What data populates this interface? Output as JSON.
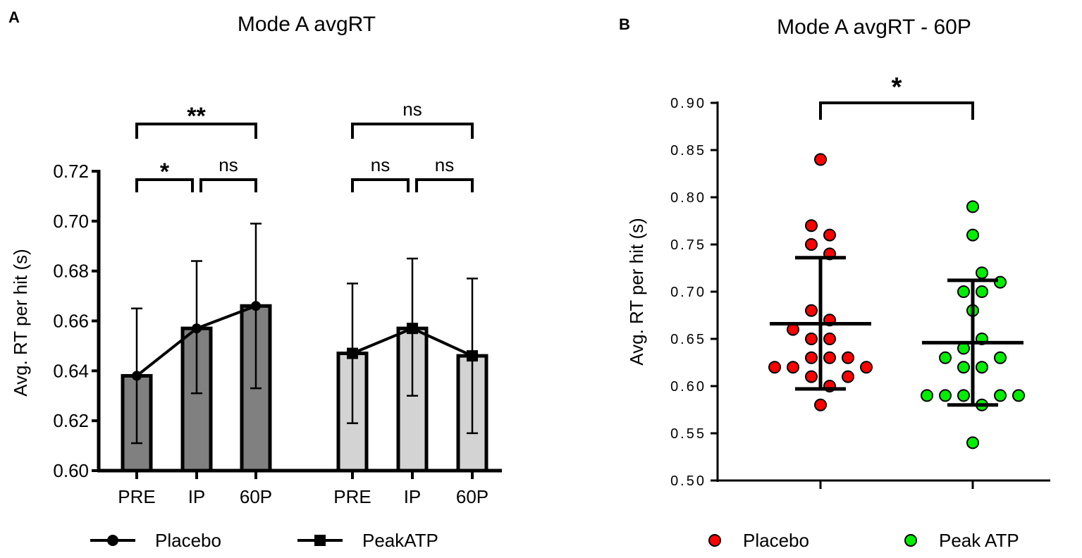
{
  "chart_data": [
    {
      "panel": "A",
      "type": "bar",
      "title": "Mode A avgRT",
      "ylabel": "Avg. RT per hit (s)",
      "xlabel": "",
      "ylim": [
        0.6,
        0.72
      ],
      "yticks": [
        "0.60",
        "0.62",
        "0.64",
        "0.66",
        "0.68",
        "0.70",
        "0.72"
      ],
      "categories": [
        "PRE",
        "IP",
        "60P"
      ],
      "series": [
        {
          "name": "Placebo",
          "marker": "circle",
          "color": "#808080",
          "values": [
            0.638,
            0.657,
            0.666
          ],
          "err_low": [
            0.611,
            0.631,
            0.633
          ],
          "err_high": [
            0.665,
            0.684,
            0.699
          ]
        },
        {
          "name": "PeakATP",
          "marker": "square",
          "color": "#d3d3d3",
          "values": [
            0.647,
            0.657,
            0.646
          ],
          "err_low": [
            0.619,
            0.63,
            0.615
          ],
          "err_high": [
            0.675,
            0.685,
            0.677
          ]
        }
      ],
      "significance": [
        {
          "series": "Placebo",
          "from": "PRE",
          "to": "IP",
          "label": "*"
        },
        {
          "series": "Placebo",
          "from": "IP",
          "to": "60P",
          "label": "ns"
        },
        {
          "series": "Placebo",
          "from": "PRE",
          "to": "60P",
          "label": "**"
        },
        {
          "series": "PeakATP",
          "from": "PRE",
          "to": "IP",
          "label": "ns"
        },
        {
          "series": "PeakATP",
          "from": "IP",
          "to": "60P",
          "label": "ns"
        },
        {
          "series": "PeakATP",
          "from": "PRE",
          "to": "60P",
          "label": "ns"
        }
      ],
      "legend": "bottom"
    },
    {
      "panel": "B",
      "type": "scatter",
      "title": "Mode A avgRT - 60P",
      "ylabel": "Avg. RT per hit (s)",
      "ylim": [
        0.5,
        0.9
      ],
      "yticks": [
        "0.50",
        "0.55",
        "0.60",
        "0.65",
        "0.70",
        "0.75",
        "0.80",
        "0.85",
        "0.90"
      ],
      "series": [
        {
          "name": "Placebo",
          "color": "#ff0000",
          "values": [
            0.84,
            0.77,
            0.76,
            0.75,
            0.74,
            0.68,
            0.67,
            0.66,
            0.65,
            0.65,
            0.63,
            0.63,
            0.63,
            0.62,
            0.62,
            0.62,
            0.61,
            0.61,
            0.6,
            0.58
          ],
          "mean": 0.666,
          "sd_low": 0.597,
          "sd_high": 0.736
        },
        {
          "name": "Peak ATP",
          "color": "#00ee00",
          "values": [
            0.79,
            0.76,
            0.72,
            0.71,
            0.7,
            0.7,
            0.68,
            0.65,
            0.64,
            0.63,
            0.63,
            0.62,
            0.62,
            0.59,
            0.59,
            0.59,
            0.59,
            0.59,
            0.58,
            0.54
          ],
          "mean": 0.646,
          "sd_low": 0.58,
          "sd_high": 0.712
        }
      ],
      "significance": [
        {
          "from": "Placebo",
          "to": "Peak ATP",
          "label": "*"
        }
      ],
      "legend": "bottom"
    }
  ]
}
